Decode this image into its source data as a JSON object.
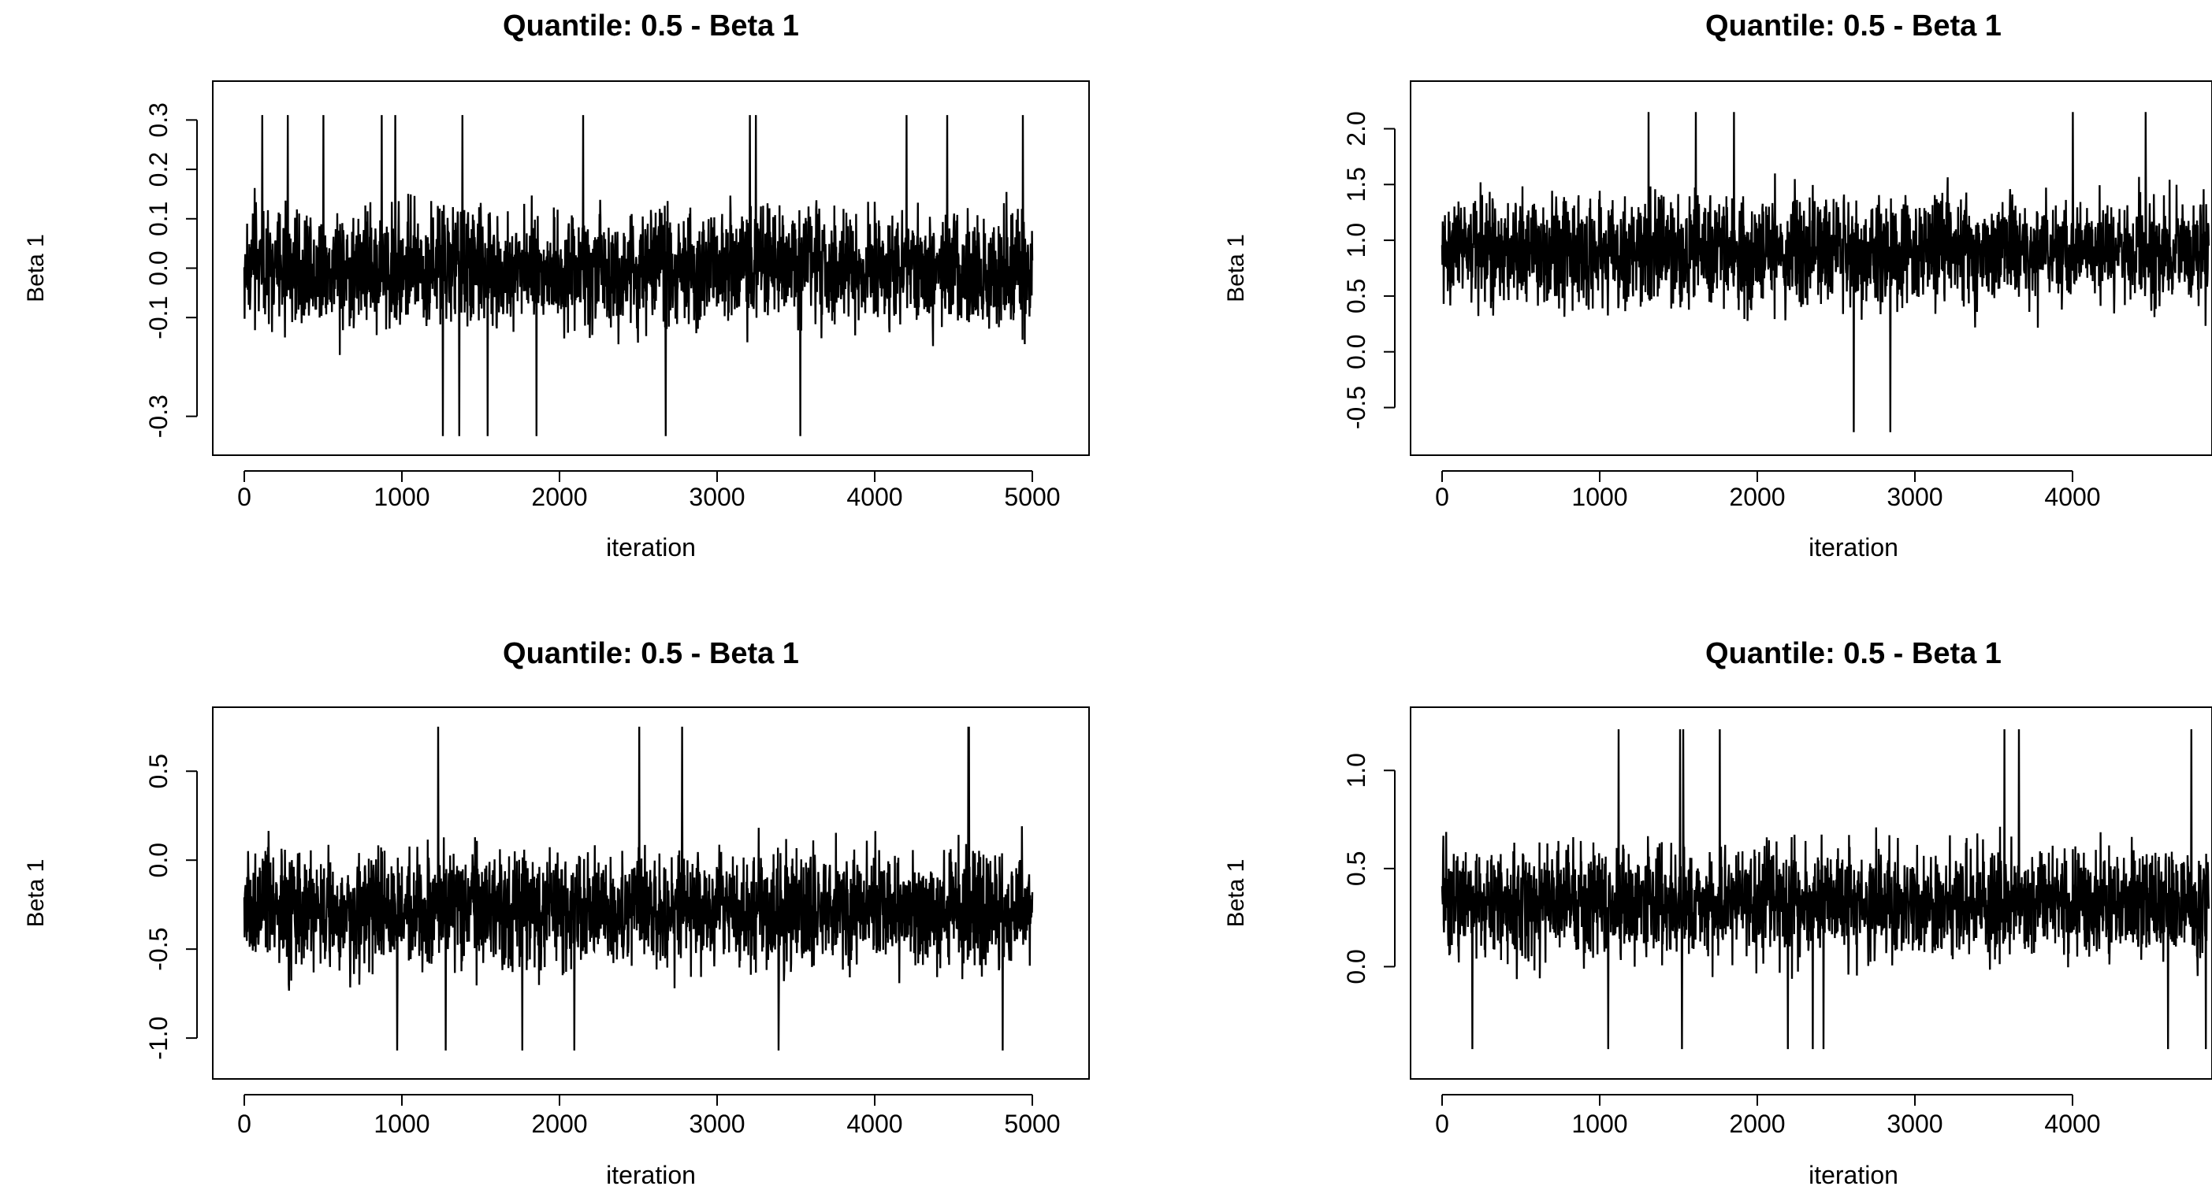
{
  "chart_data": [
    {
      "type": "line",
      "title": "Quantile:  0.5  - Beta  1",
      "xlabel": "iteration",
      "ylabel": "Beta 1",
      "xlim": [
        0,
        5000
      ],
      "ylim": [
        -0.35,
        0.35
      ],
      "xticks": [
        0,
        1000,
        2000,
        3000,
        4000,
        5000
      ],
      "yticks": [
        -0.3,
        -0.1,
        0.0,
        0.1,
        0.2,
        0.3
      ],
      "ytick_labels": [
        "-0.3",
        "-0.1",
        "0.0",
        "0.1",
        "0.2",
        "0.3"
      ],
      "grid": false,
      "series": [
        {
          "n_iterations": 5000,
          "center": 0.0,
          "spread": 0.08,
          "min": -0.34,
          "max": 0.31,
          "color": "#000000"
        }
      ]
    },
    {
      "type": "line",
      "title": "Quantile:  0.5  - Beta  1",
      "xlabel": "iteration",
      "ylabel": "Beta 1",
      "xlim": [
        0,
        5000
      ],
      "ylim": [
        -0.8,
        2.3
      ],
      "xticks": [
        0,
        1000,
        2000,
        3000,
        4000
      ],
      "yticks": [
        -0.5,
        0.0,
        0.5,
        1.0,
        1.5,
        2.0
      ],
      "ytick_labels": [
        "-0.5",
        "0.0",
        "0.5",
        "1.0",
        "1.5",
        "2.0"
      ],
      "grid": false,
      "series": [
        {
          "n_iterations": 5000,
          "center": 0.9,
          "spread": 0.33,
          "min": -0.72,
          "max": 2.15,
          "color": "#000000"
        }
      ]
    },
    {
      "type": "line",
      "title": "Quantile:  0.5  - Beta  1",
      "xlabel": "iteration",
      "ylabel": "Beta 1",
      "xlim": [
        0,
        5000
      ],
      "ylim": [
        -1.15,
        0.78
      ],
      "xticks": [
        0,
        1000,
        2000,
        3000,
        4000,
        5000
      ],
      "yticks": [
        -1.0,
        -0.5,
        0.0,
        0.5
      ],
      "ytick_labels": [
        "-1.0",
        "-0.5",
        "0.0",
        "0.5"
      ],
      "grid": false,
      "series": [
        {
          "n_iterations": 5000,
          "center": -0.28,
          "spread": 0.22,
          "min": -1.07,
          "max": 0.75,
          "color": "#000000"
        }
      ]
    },
    {
      "type": "line",
      "title": "Quantile:  0.5  - Beta  1",
      "xlabel": "iteration",
      "ylabel": "Beta 1",
      "xlim": [
        0,
        5000
      ],
      "ylim": [
        -0.5,
        1.25
      ],
      "xticks": [
        0,
        1000,
        2000,
        3000,
        4000
      ],
      "yticks": [
        0.0,
        0.5,
        1.0
      ],
      "ytick_labels": [
        "0.0",
        "0.5",
        "1.0"
      ],
      "grid": false,
      "series": [
        {
          "n_iterations": 5000,
          "center": 0.32,
          "spread": 0.19,
          "min": -0.42,
          "max": 1.21,
          "color": "#000000"
        }
      ]
    }
  ]
}
